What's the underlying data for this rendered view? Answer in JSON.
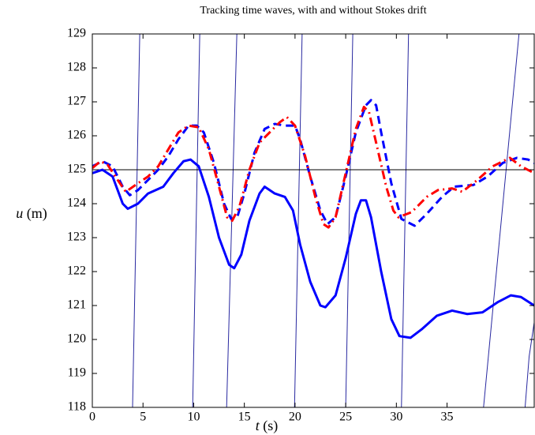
{
  "chart_data": {
    "type": "line",
    "title": "Tracking time waves, with and without Stokes drift",
    "x_label": {
      "symbol": "t",
      "unit": "(s)"
    },
    "y_label": {
      "symbol": "u",
      "unit": "(m)"
    },
    "xlim": [
      0,
      43.6
    ],
    "ylim": [
      118,
      129
    ],
    "xticks": [
      0,
      5,
      10,
      15,
      20,
      25,
      30,
      35
    ],
    "yticks": [
      118,
      119,
      120,
      121,
      122,
      123,
      124,
      125,
      126,
      127,
      128,
      129
    ],
    "grid": false,
    "series": [
      {
        "color": "#2828a0",
        "linestyle": "solid",
        "weight": "thin",
        "x": [
          3.97,
          4.68,
          null,
          9.9,
          10.6,
          null,
          13.25,
          14.26,
          null,
          19.95,
          20.7,
          null,
          25.0,
          25.7,
          null,
          30.5,
          31.2,
          null,
          38.6,
          42.1,
          null,
          42.7,
          43.1,
          43.6
        ],
        "values": [
          118,
          129,
          null,
          118,
          129,
          null,
          118,
          129,
          null,
          118,
          129,
          null,
          118,
          129,
          null,
          118,
          129,
          null,
          118,
          129,
          null,
          118,
          119.5,
          120.5
        ]
      },
      {
        "color": "#000000",
        "linestyle": "solid",
        "weight": "thin",
        "x": [
          0,
          43.6
        ],
        "values": [
          125,
          125
        ]
      },
      {
        "color": "#0000ff",
        "linestyle": "solid",
        "weight": "thick",
        "x": [
          0,
          1,
          2,
          3,
          3.5,
          4.5,
          5.5,
          7,
          8,
          9,
          9.7,
          10.5,
          11.5,
          12.5,
          13.5,
          14,
          14.7,
          15.5,
          16.5,
          17,
          18,
          19,
          19.8,
          20.5,
          21.5,
          22.5,
          23,
          24,
          25,
          26,
          26.5,
          27,
          27.5,
          28.5,
          29.5,
          30.3,
          31.4,
          32.5,
          34,
          35.5,
          37,
          38.5,
          40,
          41.3,
          42.3,
          43.6
        ],
        "values": [
          124.9,
          125.0,
          124.8,
          124.0,
          123.85,
          124.0,
          124.3,
          124.5,
          124.9,
          125.25,
          125.3,
          125.1,
          124.2,
          123.0,
          122.2,
          122.1,
          122.5,
          123.5,
          124.3,
          124.5,
          124.3,
          124.2,
          123.8,
          122.8,
          121.7,
          121.0,
          120.95,
          121.3,
          122.4,
          123.7,
          124.1,
          124.1,
          123.6,
          122.0,
          120.6,
          120.1,
          120.05,
          120.3,
          120.7,
          120.85,
          120.75,
          120.8,
          121.1,
          121.3,
          121.25,
          121.0
        ]
      },
      {
        "color": "#0000ff",
        "linestyle": "dashed",
        "weight": "thick",
        "x": [
          0,
          1,
          2,
          3,
          3.7,
          4.5,
          5.5,
          6.5,
          7.5,
          8.5,
          9.5,
          10.3,
          11,
          12,
          13,
          13.7,
          14.3,
          15,
          16,
          17,
          18,
          19,
          20,
          20.5,
          21.5,
          22.5,
          23.2,
          24,
          25,
          26,
          27,
          27.5,
          28,
          28.5,
          29.5,
          30.5,
          31.8,
          33,
          34.5,
          35.7,
          37.6,
          39,
          40.5,
          41.9,
          43,
          43.6
        ],
        "values": [
          125.1,
          125.25,
          125.1,
          124.5,
          124.25,
          124.4,
          124.7,
          125.0,
          125.4,
          125.9,
          126.3,
          126.3,
          126.1,
          125.2,
          124.0,
          123.55,
          123.6,
          124.3,
          125.5,
          126.2,
          126.35,
          126.3,
          126.3,
          125.9,
          124.8,
          123.8,
          123.4,
          123.6,
          124.8,
          126.1,
          126.9,
          127.05,
          126.9,
          126.1,
          124.6,
          123.55,
          123.35,
          123.7,
          124.2,
          124.5,
          124.55,
          124.8,
          125.2,
          125.35,
          125.3,
          125.2
        ]
      },
      {
        "color": "#ff0000",
        "linestyle": "dashdot",
        "weight": "thick",
        "x": [
          0,
          0.8,
          1.5,
          2.5,
          3.3,
          4.5,
          5.5,
          6.5,
          7.5,
          8.5,
          9.5,
          10.5,
          11.5,
          12.5,
          13.3,
          13.8,
          14.5,
          15.5,
          16.5,
          17.5,
          18.5,
          19.2,
          20,
          21,
          22,
          22.8,
          23.3,
          24,
          25,
          26,
          26.8,
          27.3,
          28,
          29,
          29.7,
          30.2,
          31.5,
          33,
          34.1,
          35.5,
          36.5,
          38,
          39.5,
          41.2,
          42.3,
          43.6
        ],
        "values": [
          125.05,
          125.25,
          125.15,
          124.7,
          124.35,
          124.6,
          124.8,
          125.1,
          125.6,
          126.1,
          126.3,
          126.25,
          125.6,
          124.5,
          123.6,
          123.5,
          123.9,
          125.0,
          125.8,
          126.1,
          126.4,
          126.55,
          126.3,
          125.4,
          124.2,
          123.4,
          123.3,
          123.6,
          124.9,
          126.2,
          126.85,
          126.7,
          125.8,
          124.5,
          123.8,
          123.6,
          123.75,
          124.2,
          124.4,
          124.45,
          124.35,
          124.7,
          125.1,
          125.35,
          125.1,
          124.9
        ]
      }
    ]
  }
}
